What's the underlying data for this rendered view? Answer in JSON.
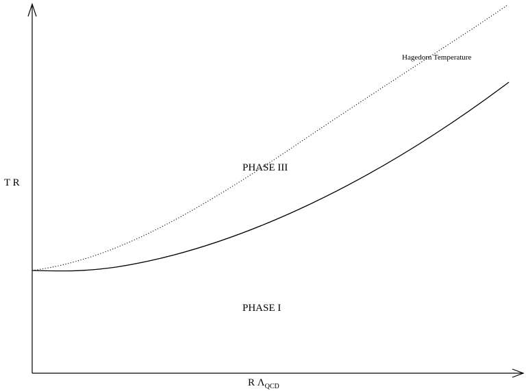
{
  "diagram": {
    "y_axis_label": "T R",
    "x_axis_label": {
      "main": "R Λ",
      "subscript": "QCD"
    },
    "curves": {
      "hagedorn_label": "Hagedorn Temperature",
      "hagedorn_style": "dotted",
      "transition_style": "solid"
    },
    "regions": {
      "upper": "PHASE III",
      "lower": "PHASE I"
    },
    "colors": {
      "ink": "#000000",
      "background": "#ffffff"
    }
  }
}
